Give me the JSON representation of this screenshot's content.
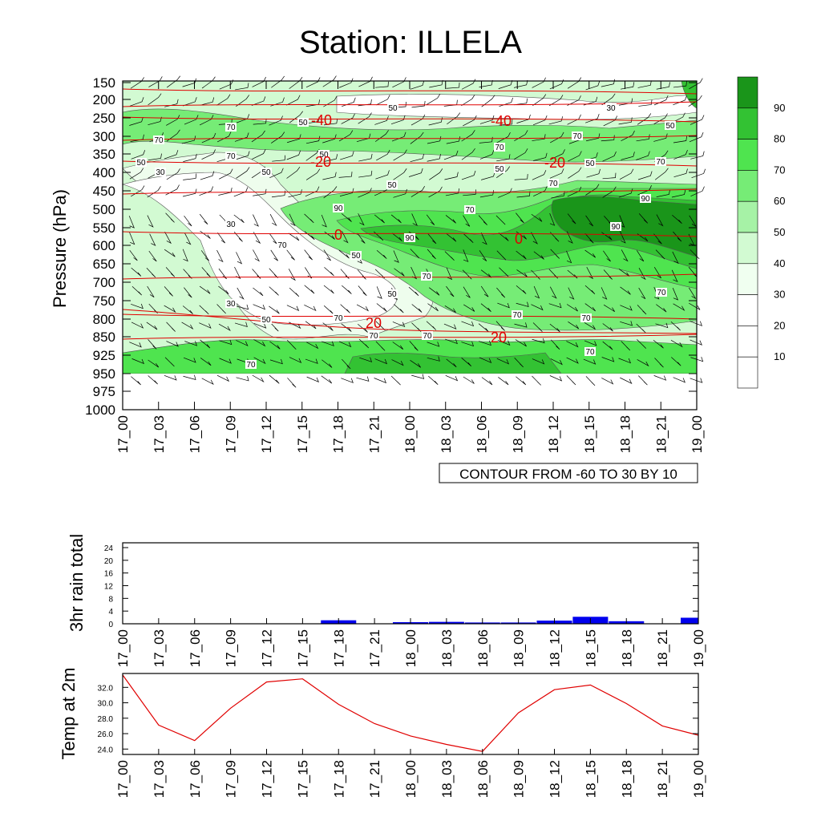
{
  "title": "Station: ILLELA",
  "chart_data": [
    {
      "type": "heatmap",
      "name": "relative-humidity-cross-section",
      "title": "Station: ILLELA",
      "ylabel": "Pressure (hPa)",
      "xlabel": "",
      "x_ticks": [
        "17_00",
        "17_03",
        "17_06",
        "17_09",
        "17_12",
        "17_15",
        "17_18",
        "17_21",
        "18_00",
        "18_03",
        "18_06",
        "18_09",
        "18_12",
        "18_15",
        "18_18",
        "18_21",
        "19_00"
      ],
      "y_ticks": [
        "150",
        "200",
        "250",
        "300",
        "350",
        "400",
        "450",
        "500",
        "550",
        "600",
        "650",
        "700",
        "750",
        "800",
        "850",
        "925",
        "950",
        "975",
        "1000"
      ],
      "colorbar": {
        "levels": [
          "10",
          "20",
          "30",
          "40",
          "50",
          "60",
          "70",
          "80",
          "90"
        ],
        "colors": [
          "#ffffff",
          "#ffffff",
          "#ffffff",
          "#f0fff0",
          "#d2fad2",
          "#a6f2a6",
          "#76ec76",
          "#4fe44f",
          "#33c233",
          "#1a951a"
        ]
      },
      "rh_contour_labels": [
        "50",
        "70",
        "70",
        "70",
        "50",
        "50",
        "50",
        "30",
        "50",
        "50",
        "30",
        "50",
        "70",
        "70",
        "50",
        "50",
        "70",
        "70",
        "90",
        "90",
        "70",
        "90",
        "90",
        "30",
        "70",
        "50",
        "70",
        "50",
        "70",
        "30",
        "50",
        "70",
        "70",
        "70",
        "70",
        "70",
        "70",
        "70"
      ],
      "temperature_contours": [
        "-40",
        "-40",
        "-20",
        "-20",
        "0",
        "0",
        "20",
        "20"
      ],
      "info_box": "CONTOUR FROM -60 TO 30 BY 10"
    },
    {
      "type": "bar",
      "name": "rain-3hr",
      "ylabel": "3hr rain total",
      "ylim": [
        0,
        24
      ],
      "y_ticks": [
        "0",
        "4",
        "8",
        "12",
        "16",
        "20",
        "24"
      ],
      "categories": [
        "17_00",
        "17_03",
        "17_06",
        "17_09",
        "17_12",
        "17_15",
        "17_18",
        "17_21",
        "18_00",
        "18_03",
        "18_06",
        "18_09",
        "18_12",
        "18_15",
        "18_18",
        "18_21",
        "19_00"
      ],
      "values": [
        0,
        0,
        0,
        0,
        0,
        0,
        1.1,
        0,
        0.5,
        0.6,
        0.4,
        0.4,
        1.0,
        2.2,
        0.8,
        0,
        1.9
      ],
      "color": "#0000ee"
    },
    {
      "type": "line",
      "name": "temp-2m",
      "ylabel": "Temp at 2m",
      "ylim": [
        23.3,
        33.8
      ],
      "y_ticks": [
        "24.0",
        "26.0",
        "28.0",
        "30.0",
        "32.0"
      ],
      "categories": [
        "17_00",
        "17_03",
        "17_06",
        "17_09",
        "17_12",
        "17_15",
        "17_18",
        "17_21",
        "18_00",
        "18_03",
        "18_06",
        "18_09",
        "18_12",
        "18_15",
        "18_18",
        "18_21",
        "19_00"
      ],
      "values": [
        33.6,
        27.1,
        25.1,
        29.3,
        32.7,
        33.1,
        29.8,
        27.3,
        25.7,
        24.6,
        23.7,
        28.7,
        31.7,
        32.3,
        29.9,
        27.0,
        25.8
      ],
      "color": "#e00000"
    }
  ]
}
